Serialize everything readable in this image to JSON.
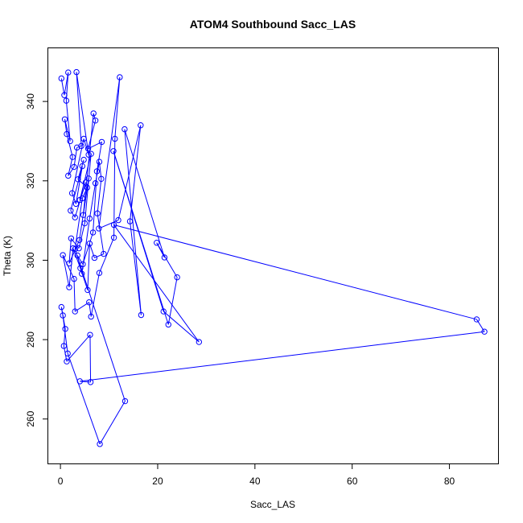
{
  "chart_data": {
    "type": "line",
    "title": "ATOM4 Southbound Sacc_LAS",
    "xlabel": "Sacc_LAS",
    "ylabel": "Theta (K)",
    "xlim": [
      -2.5,
      90.0
    ],
    "ylim": [
      248.8,
      353.4
    ],
    "xticks": [
      0,
      20,
      40,
      60,
      80
    ],
    "yticks": [
      260,
      280,
      300,
      320,
      340
    ],
    "grid": false,
    "legend": "none",
    "series": [
      {
        "color": "#0000ff",
        "marker": "open-circle",
        "points": [
          [
            0.2,
            345.8
          ],
          [
            0.8,
            341.6
          ],
          [
            1.6,
            347.3
          ],
          [
            1.2,
            340.2
          ],
          [
            2.0,
            330.0
          ],
          [
            0.9,
            335.5
          ],
          [
            1.3,
            331.8
          ],
          [
            2.5,
            326.0
          ],
          [
            1.6,
            321.3
          ],
          [
            2.8,
            323.5
          ],
          [
            3.4,
            328.4
          ],
          [
            4.3,
            328.8
          ],
          [
            3.3,
            347.4
          ],
          [
            5.8,
            326.6
          ],
          [
            4.8,
            330.6
          ],
          [
            2.4,
            316.9
          ],
          [
            3.2,
            314.2
          ],
          [
            4.5,
            323.7
          ],
          [
            2.1,
            312.5
          ],
          [
            3.0,
            310.8
          ],
          [
            5.2,
            319.6
          ],
          [
            4.0,
            315.2
          ],
          [
            6.3,
            326.8
          ],
          [
            5.0,
            309.3
          ],
          [
            3.8,
            303.0
          ],
          [
            2.2,
            305.5
          ],
          [
            1.8,
            299.2
          ],
          [
            3.9,
            305.1
          ],
          [
            5.8,
            320.6
          ],
          [
            4.7,
            311.4
          ],
          [
            6.8,
            337.0
          ],
          [
            7.2,
            335.2
          ],
          [
            5.7,
            328.1
          ],
          [
            8.5,
            329.8
          ],
          [
            7.5,
            322.4
          ],
          [
            6.7,
            307.0
          ],
          [
            4.6,
            299.0
          ],
          [
            3.5,
            301.2
          ],
          [
            4.4,
            296.6
          ],
          [
            6.0,
            310.5
          ],
          [
            7.2,
            319.4
          ],
          [
            8.0,
            324.8
          ],
          [
            8.4,
            320.5
          ],
          [
            7.6,
            311.8
          ],
          [
            8.9,
            301.6
          ],
          [
            7.0,
            300.6
          ],
          [
            6.0,
            304.2
          ],
          [
            5.6,
            292.5
          ],
          [
            4.1,
            298.0
          ],
          [
            2.6,
            303.0
          ],
          [
            1.8,
            293.2
          ],
          [
            0.5,
            301.3
          ],
          [
            2.8,
            295.3
          ],
          [
            3.0,
            287.1
          ],
          [
            5.9,
            289.4
          ],
          [
            6.3,
            285.8
          ],
          [
            8.0,
            296.8
          ],
          [
            11.0,
            305.7
          ],
          [
            11.2,
            330.6
          ],
          [
            12.2,
            346.1
          ],
          [
            7.9,
            308.0
          ],
          [
            11.9,
            310.1
          ],
          [
            16.5,
            334.0
          ],
          [
            14.3,
            309.8
          ],
          [
            16.6,
            286.2
          ],
          [
            13.2,
            333.0
          ],
          [
            21.4,
            300.7
          ],
          [
            19.8,
            304.4
          ],
          [
            24.0,
            295.7
          ],
          [
            22.2,
            283.8
          ],
          [
            10.9,
            327.5
          ],
          [
            21.2,
            287.1
          ],
          [
            28.5,
            279.4
          ],
          [
            11.0,
            308.9
          ],
          [
            85.6,
            285.1
          ],
          [
            87.2,
            282.0
          ],
          [
            4.0,
            269.5
          ],
          [
            6.2,
            269.3
          ],
          [
            6.1,
            281.2
          ],
          [
            1.3,
            274.5
          ],
          [
            0.7,
            278.4
          ],
          [
            1.0,
            282.7
          ],
          [
            0.2,
            288.2
          ],
          [
            0.5,
            286.1
          ],
          [
            1.5,
            276.5
          ],
          [
            8.1,
            253.7
          ],
          [
            13.3,
            264.5
          ],
          [
            3.0,
            302.8
          ],
          [
            4.5,
            315.6
          ],
          [
            5.5,
            318.3
          ],
          [
            3.6,
            320.4
          ],
          [
            4.8,
            325.3
          ]
        ]
      }
    ]
  }
}
